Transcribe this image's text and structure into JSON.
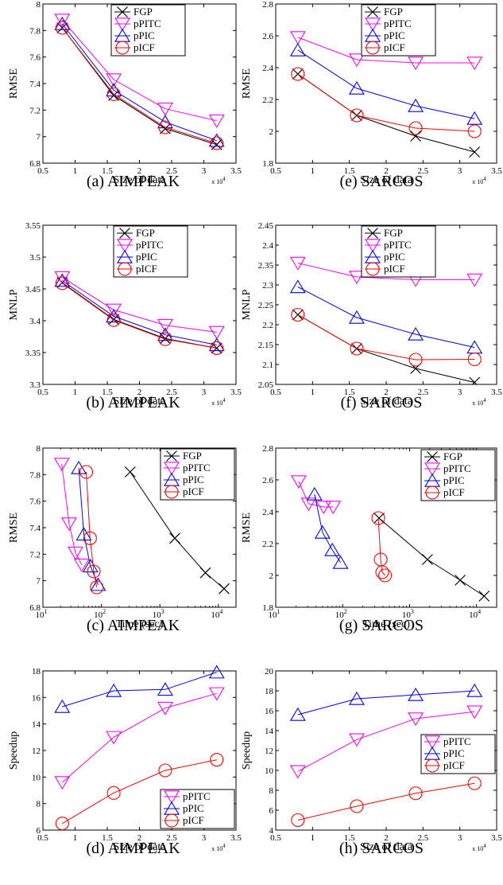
{
  "colors": {
    "FGP": "#000000",
    "pPITC": "#ff00ff",
    "pPIC": "#0000ff",
    "pICF": "#ff0000"
  },
  "markers": {
    "FGP": "x",
    "pPITC": "triangle-down",
    "pPIC": "triangle-up",
    "pICF": "circle"
  },
  "chart_data": [
    {
      "type": "line",
      "caption": "(a) AIMPEAK",
      "xlabel": "Size of data",
      "ylabel": "RMSE",
      "xlim": [
        0.5,
        3.5
      ],
      "ylim": [
        6.8,
        8
      ],
      "xticks": [
        "0.5",
        "1",
        "1.5",
        "2",
        "2.5",
        "3",
        "3.5"
      ],
      "xtick_vals": [
        0.5,
        1,
        1.5,
        2,
        2.5,
        3,
        3.5
      ],
      "yticks": [
        "6.8",
        "7",
        "7.2",
        "7.4",
        "7.6",
        "7.8",
        "8"
      ],
      "ytick_vals": [
        6.8,
        7,
        7.2,
        7.4,
        7.6,
        7.8,
        8
      ],
      "xmult": "x 10",
      "xmult_exp": "4",
      "xscale": "linear",
      "legend": "top-right",
      "series": [
        {
          "name": "FGP",
          "key": "FGP",
          "x": [
            0.8,
            1.6,
            2.4,
            3.2
          ],
          "y": [
            7.82,
            7.31,
            7.06,
            6.94
          ]
        },
        {
          "name": "pPITC",
          "key": "pPITC",
          "x": [
            0.8,
            1.6,
            2.4,
            3.2
          ],
          "y": [
            7.88,
            7.43,
            7.21,
            7.12
          ]
        },
        {
          "name": "pPIC",
          "key": "pPIC",
          "x": [
            0.8,
            1.6,
            2.4,
            3.2
          ],
          "y": [
            7.85,
            7.35,
            7.11,
            6.97
          ]
        },
        {
          "name": "pICF",
          "key": "pICF",
          "x": [
            0.8,
            1.6,
            2.4,
            3.2
          ],
          "y": [
            7.82,
            7.32,
            7.07,
            6.95
          ]
        }
      ]
    },
    {
      "type": "line",
      "caption": "(e) SARCOS",
      "xlabel": "Size of data",
      "ylabel": "RMSE",
      "xlim": [
        0.5,
        3.5
      ],
      "ylim": [
        1.8,
        2.8
      ],
      "xticks": [
        "0.5",
        "1",
        "1.5",
        "2",
        "2.5",
        "3",
        "3.5"
      ],
      "xtick_vals": [
        0.5,
        1,
        1.5,
        2,
        2.5,
        3,
        3.5
      ],
      "yticks": [
        "1.8",
        "2",
        "2.2",
        "2.4",
        "2.6",
        "2.8"
      ],
      "ytick_vals": [
        1.8,
        2,
        2.2,
        2.4,
        2.6,
        2.8
      ],
      "xmult": "x 10",
      "xmult_exp": "4",
      "xscale": "linear",
      "legend": "top-left",
      "series": [
        {
          "name": "FGP",
          "key": "FGP",
          "x": [
            0.8,
            1.6,
            2.4,
            3.2
          ],
          "y": [
            2.36,
            2.1,
            1.97,
            1.87
          ]
        },
        {
          "name": "pPITC",
          "key": "pPITC",
          "x": [
            0.8,
            1.6,
            2.4,
            3.2
          ],
          "y": [
            2.59,
            2.45,
            2.43,
            2.43
          ]
        },
        {
          "name": "pPIC",
          "key": "pPIC",
          "x": [
            0.8,
            1.6,
            2.4,
            3.2
          ],
          "y": [
            2.51,
            2.27,
            2.16,
            2.08
          ]
        },
        {
          "name": "pICF",
          "key": "pICF",
          "x": [
            0.8,
            1.6,
            2.4,
            3.2
          ],
          "y": [
            2.36,
            2.1,
            2.02,
            2.0
          ]
        }
      ]
    },
    {
      "type": "line",
      "caption": "(b) AIMPEAK",
      "xlabel": "Size of data",
      "ylabel": "MNLP",
      "xlim": [
        0.5,
        3.5
      ],
      "ylim": [
        3.3,
        3.55
      ],
      "xticks": [
        "0.5",
        "1",
        "1.5",
        "2",
        "2.5",
        "3",
        "3.5"
      ],
      "xtick_vals": [
        0.5,
        1,
        1.5,
        2,
        2.5,
        3,
        3.5
      ],
      "yticks": [
        "3.3",
        "3.35",
        "3.4",
        "3.45",
        "3.5",
        "3.55"
      ],
      "ytick_vals": [
        3.3,
        3.35,
        3.4,
        3.45,
        3.5,
        3.55
      ],
      "xmult": "x 10",
      "xmult_exp": "4",
      "xscale": "linear",
      "legend": "top-right",
      "series": [
        {
          "name": "FGP",
          "key": "FGP",
          "x": [
            0.8,
            1.6,
            2.4,
            3.2
          ],
          "y": [
            3.46,
            3.402,
            3.372,
            3.357
          ]
        },
        {
          "name": "pPITC",
          "key": "pPITC",
          "x": [
            0.8,
            1.6,
            2.4,
            3.2
          ],
          "y": [
            3.468,
            3.417,
            3.393,
            3.382
          ]
        },
        {
          "name": "pPIC",
          "key": "pPIC",
          "x": [
            0.8,
            1.6,
            2.4,
            3.2
          ],
          "y": [
            3.463,
            3.407,
            3.378,
            3.362
          ]
        },
        {
          "name": "pICF",
          "key": "pICF",
          "x": [
            0.8,
            1.6,
            2.4,
            3.2
          ],
          "y": [
            3.459,
            3.401,
            3.371,
            3.357
          ]
        }
      ]
    },
    {
      "type": "line",
      "caption": "(f) SARCOS",
      "xlabel": "Size of data",
      "ylabel": "MNLP",
      "xlim": [
        0.5,
        3.5
      ],
      "ylim": [
        2.05,
        2.45
      ],
      "xticks": [
        "0.5",
        "1",
        "1.5",
        "2",
        "2.5",
        "3",
        "3.5"
      ],
      "xtick_vals": [
        0.5,
        1,
        1.5,
        2,
        2.5,
        3,
        3.5
      ],
      "yticks": [
        "2.05",
        "2.1",
        "2.15",
        "2.2",
        "2.25",
        "2.3",
        "2.35",
        "2.4",
        "2.45"
      ],
      "ytick_vals": [
        2.05,
        2.1,
        2.15,
        2.2,
        2.25,
        2.3,
        2.35,
        2.4,
        2.45
      ],
      "xmult": "x 10",
      "xmult_exp": "4",
      "xscale": "linear",
      "legend": "top-left",
      "series": [
        {
          "name": "FGP",
          "key": "FGP",
          "x": [
            0.8,
            1.6,
            2.4,
            3.2
          ],
          "y": [
            2.225,
            2.14,
            2.09,
            2.055
          ]
        },
        {
          "name": "pPITC",
          "key": "pPITC",
          "x": [
            0.8,
            1.6,
            2.4,
            3.2
          ],
          "y": [
            2.355,
            2.32,
            2.313,
            2.313
          ]
        },
        {
          "name": "pPIC",
          "key": "pPIC",
          "x": [
            0.8,
            1.6,
            2.4,
            3.2
          ],
          "y": [
            2.295,
            2.218,
            2.176,
            2.143
          ]
        },
        {
          "name": "pICF",
          "key": "pICF",
          "x": [
            0.8,
            1.6,
            2.4,
            3.2
          ],
          "y": [
            2.225,
            2.14,
            2.112,
            2.113
          ]
        }
      ]
    },
    {
      "type": "line",
      "caption": "(c) AIMPEAK",
      "xlabel": "Time (sec)",
      "ylabel": "RMSE",
      "xlim": [
        10,
        20000
      ],
      "ylim": [
        6.8,
        8
      ],
      "xticks": [
        "10",
        "10",
        "10",
        "10"
      ],
      "xtick_exps": [
        "1",
        "2",
        "3",
        "4"
      ],
      "xtick_vals": [
        10,
        100,
        1000,
        10000
      ],
      "yticks": [
        "6.8",
        "7",
        "7.2",
        "7.4",
        "7.6",
        "7.8",
        "8"
      ],
      "ytick_vals": [
        6.8,
        7,
        7.2,
        7.4,
        7.6,
        7.8,
        8
      ],
      "xscale": "log",
      "legend": "top-right",
      "series": [
        {
          "name": "FGP",
          "key": "FGP",
          "x": [
            310,
            1800,
            6000,
            12500
          ],
          "y": [
            7.82,
            7.32,
            7.06,
            6.94
          ]
        },
        {
          "name": "pPITC",
          "key": "pPITC",
          "x": [
            21,
            28,
            36,
            46
          ],
          "y": [
            7.88,
            7.43,
            7.21,
            7.12
          ]
        },
        {
          "name": "pPIC",
          "key": "pPIC",
          "x": [
            41,
            50,
            65,
            88
          ],
          "y": [
            7.85,
            7.35,
            7.11,
            6.97
          ]
        },
        {
          "name": "pICF",
          "key": "pICF",
          "x": [
            55,
            64,
            74,
            83
          ],
          "y": [
            7.82,
            7.32,
            7.07,
            6.95
          ]
        }
      ]
    },
    {
      "type": "line",
      "caption": "(g) SARCOS",
      "xlabel": "Time (sec)",
      "ylabel": "RMSE",
      "xlim": [
        10,
        20000
      ],
      "ylim": [
        1.8,
        2.8
      ],
      "xticks": [
        "10",
        "10",
        "10",
        "10"
      ],
      "xtick_exps": [
        "1",
        "2",
        "3",
        "4"
      ],
      "xtick_vals": [
        10,
        100,
        1000,
        10000
      ],
      "yticks": [
        "1.8",
        "2",
        "2.2",
        "2.4",
        "2.6",
        "2.8"
      ],
      "ytick_vals": [
        1.8,
        2,
        2.2,
        2.4,
        2.6,
        2.8
      ],
      "xscale": "log",
      "legend": "top-right",
      "series": [
        {
          "name": "FGP",
          "key": "FGP",
          "x": [
            350,
            1850,
            5700,
            13000
          ],
          "y": [
            2.36,
            2.1,
            1.97,
            1.87
          ]
        },
        {
          "name": "pPITC",
          "key": "pPITC",
          "x": [
            22,
            31,
            52,
            72
          ],
          "y": [
            2.59,
            2.45,
            2.43,
            2.43
          ]
        },
        {
          "name": "pPIC",
          "key": "pPIC",
          "x": [
            38,
            50,
            70,
            93
          ],
          "y": [
            2.51,
            2.27,
            2.16,
            2.08
          ]
        },
        {
          "name": "pICF",
          "key": "pICF",
          "x": [
            340,
            370,
            390,
            430
          ],
          "y": [
            2.36,
            2.1,
            2.02,
            2.0
          ]
        }
      ]
    },
    {
      "type": "line",
      "caption": "(d) AIMPEAK",
      "xlabel": "Size of data",
      "ylabel": "Speedup",
      "xlim": [
        0.5,
        3.5
      ],
      "ylim": [
        6,
        18
      ],
      "xticks": [
        "0.5",
        "1",
        "1.5",
        "2",
        "2.5",
        "3",
        "3.5"
      ],
      "xtick_vals": [
        0.5,
        1,
        1.5,
        2,
        2.5,
        3,
        3.5
      ],
      "yticks": [
        "6",
        "8",
        "10",
        "12",
        "14",
        "16",
        "18"
      ],
      "ytick_vals": [
        6,
        8,
        10,
        12,
        14,
        16,
        18
      ],
      "xmult": "x 10",
      "xmult_exp": "4",
      "xscale": "linear",
      "legend": "bottom-right",
      "series": [
        {
          "name": "pPITC",
          "key": "pPITC",
          "x": [
            0.8,
            1.6,
            2.4,
            3.2
          ],
          "y": [
            9.6,
            13.0,
            15.2,
            16.3
          ]
        },
        {
          "name": "pPIC",
          "key": "pPIC",
          "x": [
            0.8,
            1.6,
            2.4,
            3.2
          ],
          "y": [
            15.3,
            16.5,
            16.6,
            17.9
          ]
        },
        {
          "name": "pICF",
          "key": "pICF",
          "x": [
            0.8,
            1.6,
            2.4,
            3.2
          ],
          "y": [
            6.5,
            8.8,
            10.5,
            11.3
          ]
        }
      ]
    },
    {
      "type": "line",
      "caption": "(h) SARCOS",
      "xlabel": "Size of data",
      "ylabel": "Speedup",
      "xlim": [
        0.5,
        3.5
      ],
      "ylim": [
        4,
        20
      ],
      "xticks": [
        "0.5",
        "1",
        "1.5",
        "2",
        "2.5",
        "3",
        "3.5"
      ],
      "xtick_vals": [
        0.5,
        1,
        1.5,
        2,
        2.5,
        3,
        3.5
      ],
      "yticks": [
        "4",
        "6",
        "8",
        "10",
        "12",
        "14",
        "16",
        "18",
        "20"
      ],
      "ytick_vals": [
        4,
        6,
        8,
        10,
        12,
        14,
        16,
        18,
        20
      ],
      "xmult": "x 10",
      "xmult_exp": "4",
      "xscale": "linear",
      "legend": "mid-right",
      "series": [
        {
          "name": "pPITC",
          "key": "pPITC",
          "x": [
            0.8,
            1.6,
            2.4,
            3.2
          ],
          "y": [
            9.9,
            13.1,
            15.2,
            15.9
          ]
        },
        {
          "name": "pPIC",
          "key": "pPIC",
          "x": [
            0.8,
            1.6,
            2.4,
            3.2
          ],
          "y": [
            15.6,
            17.2,
            17.6,
            18.0
          ]
        },
        {
          "name": "pICF",
          "key": "pICF",
          "x": [
            0.8,
            1.6,
            2.4,
            3.2
          ],
          "y": [
            5.0,
            6.4,
            7.7,
            8.7
          ]
        }
      ]
    }
  ]
}
